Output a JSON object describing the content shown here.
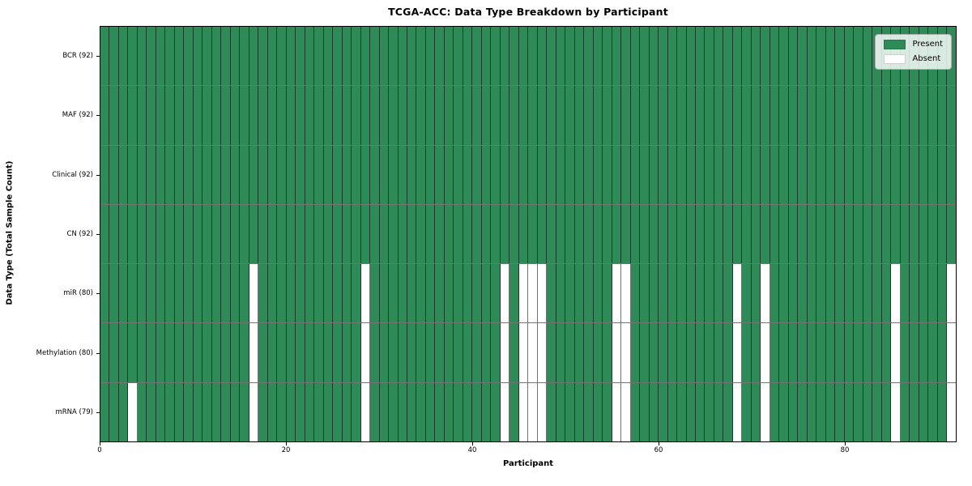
{
  "chart_data": {
    "type": "heatmap",
    "title": "TCGA-ACC: Data Type Breakdown by Participant",
    "xlabel": "Participant",
    "ylabel": "Data Type (Total Sample Count)",
    "n_participants": 92,
    "x_axis_range": [
      0,
      92
    ],
    "x_ticks": [
      0,
      20,
      40,
      60,
      80
    ],
    "x_tick_labels": [
      "0",
      "20",
      "40",
      "60",
      "80"
    ],
    "y_categories": [
      "BCR (92)",
      "MAF (92)",
      "Clinical (92)",
      "CN (92)",
      "miR (80)",
      "Methylation (80)",
      "mRNA (79)"
    ],
    "rows": [
      {
        "label": "BCR (92)",
        "data_type": "BCR",
        "present_count": 92,
        "absent_participants": []
      },
      {
        "label": "MAF (92)",
        "data_type": "MAF",
        "present_count": 92,
        "absent_participants": []
      },
      {
        "label": "Clinical (92)",
        "data_type": "Clinical",
        "present_count": 92,
        "absent_participants": []
      },
      {
        "label": "CN (92)",
        "data_type": "CN",
        "present_count": 92,
        "absent_participants": []
      },
      {
        "label": "miR (80)",
        "data_type": "miR",
        "present_count": 80,
        "absent_participants": [
          16,
          28,
          43,
          45,
          46,
          47,
          55,
          56,
          68,
          71,
          85,
          91
        ]
      },
      {
        "label": "Methylation (80)",
        "data_type": "Methylation",
        "present_count": 80,
        "absent_participants": [
          16,
          28,
          43,
          45,
          46,
          47,
          55,
          56,
          68,
          71,
          85,
          91
        ]
      },
      {
        "label": "mRNA (79)",
        "data_type": "mRNA",
        "present_count": 79,
        "absent_participants": [
          3,
          16,
          28,
          43,
          45,
          46,
          47,
          55,
          56,
          68,
          71,
          85,
          91
        ]
      }
    ],
    "legend": [
      {
        "label": "Present",
        "color": "#2e8b57"
      },
      {
        "label": "Absent",
        "color": "#ffffff"
      }
    ],
    "legend_position": "upper right",
    "grid": true,
    "colors": {
      "present": "#2e8b57",
      "absent": "#ffffff",
      "gridline": "rgba(0,0,0,0.55)",
      "plot_border": "#000000",
      "legend_bg": "rgba(255,255,255,0.82)",
      "legend_border": "#b0b0b0",
      "text": "#000000"
    }
  }
}
